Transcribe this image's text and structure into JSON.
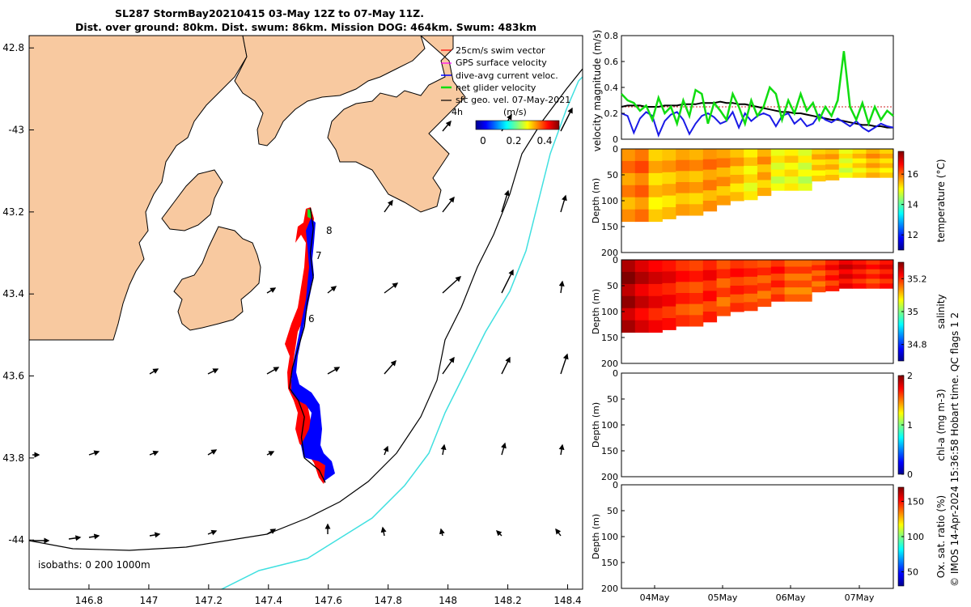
{
  "chart_data": [
    {
      "type": "map",
      "title_line1": "SL287 StormBay20210415 03-May 12Z to 07-May 11Z.",
      "title_line2": "Dist. over ground: 80km. Dist. swum: 86km. Mission DOG: 464km. Swum: 483km",
      "lon_ticks": [
        146.8,
        147,
        147.2,
        147.4,
        147.6,
        147.8,
        148,
        148.2,
        148.4
      ],
      "lon_tick_labels": [
        "146.8",
        "147",
        "147.2",
        "147.4",
        "147.6",
        "147.8",
        "148",
        "148.2",
        "148.4"
      ],
      "lat_ticks": [
        -42.8,
        -43,
        -43.2,
        -43.4,
        -43.6,
        -43.8,
        -44
      ],
      "lat_tick_labels": [
        "42.8",
        "-43",
        "43.2",
        "43.4",
        "43.6",
        "43.8",
        "-44"
      ],
      "legend": [
        "25cm/s swim vector",
        "GPS surface velocity",
        "dive-avg current veloc.",
        "net glider velocity",
        "sfc geo. vel. 07-May-2021"
      ],
      "legend_note": "4h",
      "colorbar_unit": "(m/s)",
      "colorbar_ticks": [
        "0",
        "0.2",
        "0.4"
      ],
      "day_labels": [
        "8",
        "7",
        "6"
      ],
      "isobath_label": "isobaths: 0   200  1000m",
      "track": [
        [
          147.54,
          -43.19
        ],
        [
          147.55,
          -43.24
        ],
        [
          147.54,
          -43.3
        ],
        [
          147.55,
          -43.36
        ],
        [
          147.53,
          -43.42
        ],
        [
          147.52,
          -43.48
        ],
        [
          147.5,
          -43.53
        ],
        [
          147.48,
          -43.58
        ],
        [
          147.47,
          -43.63
        ],
        [
          147.5,
          -43.66
        ],
        [
          147.52,
          -43.7
        ],
        [
          147.51,
          -43.75
        ],
        [
          147.52,
          -43.8
        ],
        [
          147.57,
          -43.83
        ],
        [
          147.59,
          -43.86
        ]
      ]
    },
    {
      "type": "line",
      "ylabel": "velocity magnitude (m/s)",
      "yticks": [
        "0",
        "0.2",
        "0.4",
        "0.6",
        "0.8"
      ],
      "ylim": [
        0,
        0.8
      ],
      "series": [
        {
          "name": "net glider velocity",
          "color": "#10dd10",
          "values": [
            0.35,
            0.3,
            0.28,
            0.22,
            0.26,
            0.15,
            0.32,
            0.2,
            0.25,
            0.12,
            0.3,
            0.18,
            0.38,
            0.35,
            0.12,
            0.28,
            0.22,
            0.15,
            0.35,
            0.25,
            0.12,
            0.3,
            0.18,
            0.25,
            0.4,
            0.35,
            0.15,
            0.3,
            0.2,
            0.35,
            0.22,
            0.28,
            0.15,
            0.25,
            0.18,
            0.3,
            0.68,
            0.25,
            0.15,
            0.28,
            0.12,
            0.25,
            0.15,
            0.22,
            0.18
          ]
        },
        {
          "name": "dive-avg current veloc.",
          "color": "#1a1ae6",
          "values": [
            0.2,
            0.18,
            0.05,
            0.16,
            0.21,
            0.18,
            0.03,
            0.14,
            0.19,
            0.21,
            0.15,
            0.04,
            0.12,
            0.18,
            0.2,
            0.17,
            0.12,
            0.14,
            0.21,
            0.09,
            0.2,
            0.14,
            0.18,
            0.2,
            0.18,
            0.1,
            0.18,
            0.2,
            0.12,
            0.16,
            0.1,
            0.12,
            0.19,
            0.15,
            0.13,
            0.16,
            0.13,
            0.1,
            0.14,
            0.09,
            0.06,
            0.09,
            0.12,
            0.1,
            0.09
          ]
        },
        {
          "name": "sfc geo. vel.",
          "color": "#000000",
          "values": [
            0.25,
            0.26,
            0.26,
            0.26,
            0.25,
            0.25,
            0.25,
            0.26,
            0.26,
            0.26,
            0.27,
            0.27,
            0.27,
            0.28,
            0.28,
            0.28,
            0.29,
            0.28,
            0.28,
            0.27,
            0.27,
            0.26,
            0.25,
            0.24,
            0.23,
            0.22,
            0.21,
            0.21,
            0.2,
            0.2,
            0.19,
            0.18,
            0.17,
            0.16,
            0.15,
            0.15,
            0.14,
            0.13,
            0.12,
            0.11,
            0.11,
            0.1,
            0.1,
            0.09,
            0.09
          ]
        },
        {
          "name": "swim",
          "color": "#cc2222",
          "values": [
            0.25,
            0.25,
            0.25,
            0.25,
            0.25,
            0.25,
            0.25,
            0.25,
            0.25,
            0.25,
            0.25,
            0.25,
            0.25,
            0.25,
            0.25,
            0.25,
            0.25,
            0.25,
            0.25,
            0.25,
            0.25,
            0.25,
            0.25,
            0.25,
            0.25,
            0.25,
            0.25,
            0.25,
            0.25,
            0.25,
            0.25,
            0.25,
            0.25,
            0.25,
            0.25,
            0.25,
            0.25,
            0.25,
            0.25,
            0.25,
            0.25,
            0.25,
            0.25,
            0.25,
            0.25
          ]
        }
      ]
    },
    {
      "type": "heatmap",
      "ylabel": "Depth (m)",
      "yticks": [
        "0",
        "50",
        "100",
        "150",
        "200"
      ],
      "ylim": [
        0,
        200
      ],
      "colorbar_label": "temperature (°C)",
      "colorbar_ticks": [
        "12",
        "14",
        "16"
      ],
      "colorbar_range": [
        11,
        17.5
      ],
      "max_depth": [
        140,
        140,
        140,
        135,
        128,
        128,
        120,
        108,
        100,
        98,
        90,
        80,
        80,
        80,
        62,
        60,
        55,
        55,
        55,
        55
      ],
      "values": [
        15.9,
        16.1,
        15.5,
        15.6,
        15.8,
        15.7,
        15.9,
        15.8,
        15.6,
        15.3,
        15.7,
        15.1,
        15.3,
        15.0,
        15.5,
        15.6,
        15.1,
        15.4,
        15.7,
        15.5
      ]
    },
    {
      "type": "heatmap",
      "ylabel": "Depth (m)",
      "yticks": [
        "0",
        "50",
        "100",
        "150",
        "200"
      ],
      "ylim": [
        0,
        200
      ],
      "colorbar_label": "salinity",
      "colorbar_ticks": [
        "34.8",
        "35",
        "35.2"
      ],
      "colorbar_range": [
        34.7,
        35.3
      ],
      "max_depth": [
        140,
        140,
        140,
        135,
        128,
        128,
        120,
        108,
        100,
        98,
        90,
        80,
        80,
        80,
        62,
        60,
        55,
        55,
        55,
        55
      ],
      "values": [
        35.29,
        35.26,
        35.24,
        35.23,
        35.21,
        35.2,
        35.22,
        35.19,
        35.21,
        35.2,
        35.19,
        35.21,
        35.18,
        35.18,
        35.19,
        35.22,
        35.25,
        35.23,
        35.21,
        35.23
      ]
    },
    {
      "type": "heatmap",
      "ylabel": "Depth (m)",
      "yticks": [
        "0",
        "50",
        "100",
        "150",
        "200"
      ],
      "ylim": [
        0,
        200
      ],
      "colorbar_label": "chl-a (mg m-3)",
      "colorbar_ticks": [
        "0",
        "1",
        "2"
      ],
      "colorbar_range": [
        0,
        2
      ]
    },
    {
      "type": "heatmap",
      "ylabel": "Depth (m)",
      "yticks": [
        "0",
        "50",
        "100",
        "150",
        "200"
      ],
      "ylim": [
        0,
        200
      ],
      "colorbar_label": "Ox. sat. ratio (%)",
      "colorbar_ticks": [
        "50",
        "100",
        "150"
      ],
      "colorbar_range": [
        30,
        170
      ],
      "xticks": [
        "04May",
        "05May",
        "06May",
        "07May"
      ]
    }
  ],
  "footer_text": "© IMOS 14-Apr-2024 15:36:58 Hobart time. QC flags 1  2",
  "colors": {
    "land": "#f8c9a0",
    "track_red": "#ff0000",
    "track_blue": "#0000ff",
    "isobath_200": "#000000",
    "isobath_1000": "#40e0e0"
  }
}
